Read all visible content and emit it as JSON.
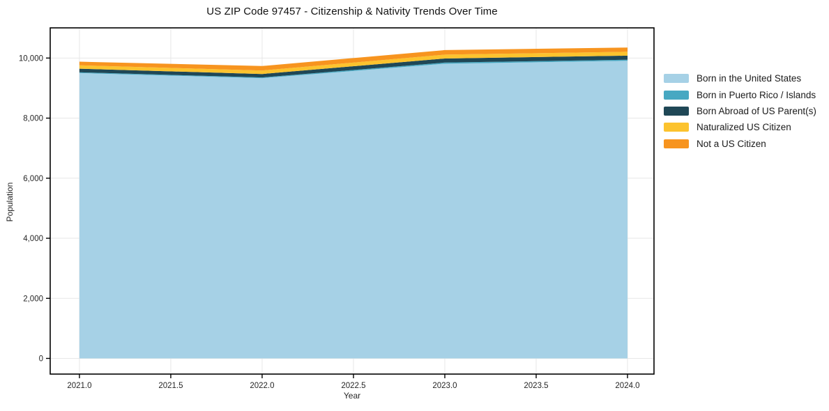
{
  "chart_data": {
    "type": "area",
    "stacked": true,
    "title": "US ZIP Code 97457 - Citizenship & Nativity Trends Over Time",
    "xlabel": "Year",
    "ylabel": "Population",
    "x": [
      2021,
      2022,
      2023,
      2024
    ],
    "series": [
      {
        "name": "Born in the United States",
        "color": "#a6d1e6",
        "values": [
          9500,
          9330,
          9810,
          9910
        ]
      },
      {
        "name": "Born in Puerto Rico / Islands",
        "color": "#47a8c2",
        "values": [
          25,
          25,
          40,
          35
        ]
      },
      {
        "name": "Born Abroad of US Parent(s)",
        "color": "#1f4756",
        "values": [
          120,
          115,
          135,
          135
        ]
      },
      {
        "name": "Naturalized US Citizen",
        "color": "#fcc32e",
        "values": [
          115,
          115,
          130,
          130
        ]
      },
      {
        "name": "Not a US Citizen",
        "color": "#f7941f",
        "values": [
          120,
          150,
          150,
          140
        ]
      }
    ],
    "totals": [
      9880,
      9735,
      10265,
      10350
    ],
    "x_ticks": {
      "values": [
        2021.0,
        2021.5,
        2022.0,
        2022.5,
        2023.0,
        2023.5,
        2024.0
      ],
      "labels": [
        "2021.0",
        "2021.5",
        "2022.0",
        "2022.5",
        "2023.0",
        "2023.5",
        "2024.0"
      ]
    },
    "y_ticks": {
      "values": [
        0,
        2000,
        4000,
        6000,
        8000,
        10000
      ],
      "labels": [
        "0",
        "2,000",
        "4,000",
        "6,000",
        "8,000",
        "10,000"
      ]
    },
    "xlim": [
      2020.84,
      2024.145
    ],
    "ylim": [
      -522,
      11005
    ],
    "grid": true,
    "legend_position": "right-outside",
    "colors": {
      "grid": "#e7e7e7",
      "axis": "#000000",
      "tick_label": "#262626",
      "background": "#ffffff"
    }
  }
}
